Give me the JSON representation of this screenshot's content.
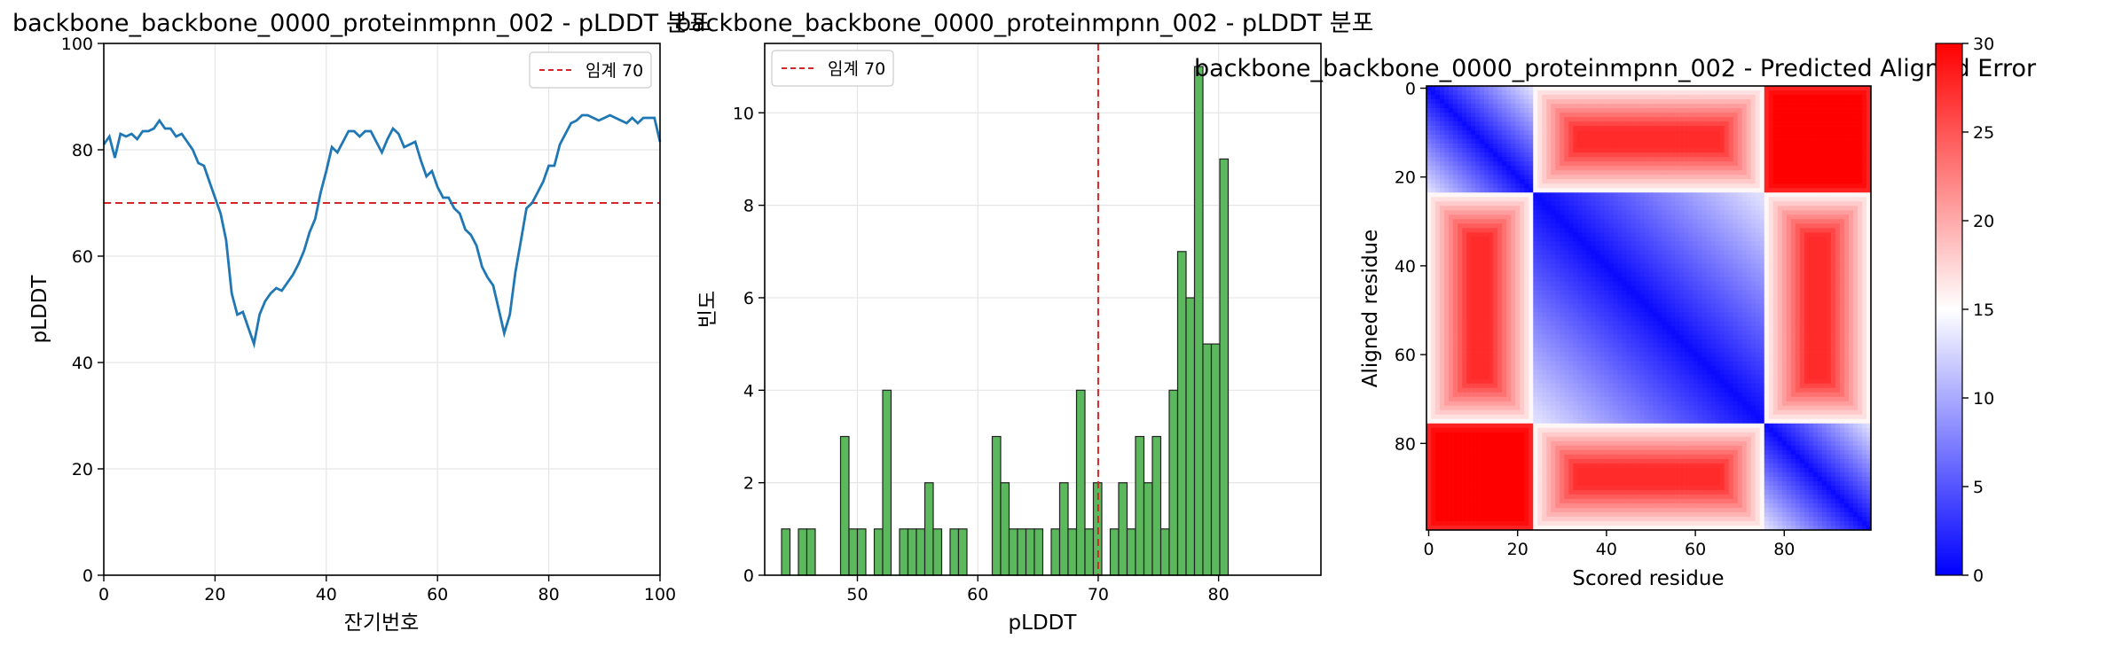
{
  "colors": {
    "line": "#1f77b4",
    "threshold": "#d62728",
    "bar_fill": "#5cb85c",
    "bar_edge": "#222222",
    "grid": "#e6e6e6"
  },
  "chart_data": [
    {
      "type": "line",
      "title": "backbone_backbone_0000_proteinmpnn_002 - pLDDT 분포",
      "xlabel": "잔기번호",
      "ylabel": "pLDDT",
      "xlim": [
        0,
        100
      ],
      "ylim": [
        0,
        100
      ],
      "xticks": [
        0,
        20,
        40,
        60,
        80,
        100
      ],
      "yticks": [
        0,
        20,
        40,
        60,
        80,
        100
      ],
      "grid": true,
      "legend": {
        "placement": "top-right",
        "entries": [
          "임계 70"
        ]
      },
      "threshold": 70,
      "series": [
        {
          "x": [
            0,
            1,
            2,
            3,
            4,
            5,
            6,
            7,
            8,
            9,
            10,
            11,
            12,
            13,
            14,
            15,
            16,
            17,
            18,
            19,
            20,
            21,
            22,
            23,
            24,
            25,
            26,
            27,
            28,
            29,
            30,
            31,
            32,
            33,
            34,
            35,
            36,
            37,
            38,
            39,
            40,
            41,
            42,
            43,
            44,
            45,
            46,
            47,
            48,
            49,
            50,
            51,
            52,
            53,
            54,
            55,
            56,
            57,
            58,
            59,
            60,
            61,
            62,
            63,
            64,
            65,
            66,
            67,
            68,
            69,
            70,
            71,
            72,
            73,
            74,
            75,
            76,
            77,
            78,
            79,
            80,
            81,
            82,
            83,
            84,
            85,
            86,
            87,
            88,
            89,
            90,
            91,
            92,
            93,
            94,
            95,
            96,
            97,
            98,
            99,
            100
          ],
          "values": [
            81,
            82.5,
            78.5,
            83,
            82.5,
            83,
            82,
            83.5,
            83.5,
            84,
            85.5,
            84,
            84,
            82.5,
            83,
            81.5,
            80,
            77.5,
            77,
            74,
            71,
            68,
            63,
            53,
            49,
            49.5,
            46.5,
            43.5,
            49,
            51.5,
            53,
            54,
            53.5,
            55,
            56.5,
            58.5,
            61,
            64.5,
            67,
            72,
            76,
            80.5,
            79.5,
            81.5,
            83.5,
            83.5,
            82.5,
            83.5,
            83.5,
            81.5,
            79.5,
            82,
            84,
            83,
            80.5,
            81,
            81.5,
            78,
            75,
            76,
            73,
            71,
            71,
            69,
            68,
            65,
            64,
            62,
            58,
            56,
            54.5,
            50,
            45.5,
            49,
            57,
            63,
            69,
            70,
            72,
            74,
            77,
            77,
            81,
            83,
            85,
            85.5,
            86.5,
            86.5,
            86,
            85.5,
            86,
            86.5,
            86,
            85.5,
            85,
            86,
            85,
            86,
            86,
            86,
            81.5
          ]
        }
      ]
    },
    {
      "type": "bar",
      "title": "backbone_backbone_0000_proteinmpnn_002 - pLDDT 분포",
      "xlabel": "pLDDT",
      "ylabel": "빈도",
      "xlim": [
        42.3,
        88.5
      ],
      "ylim": [
        0,
        11.5
      ],
      "xticks": [
        50,
        60,
        70,
        80
      ],
      "yticks": [
        0,
        2,
        4,
        6,
        8,
        10
      ],
      "grid": true,
      "legend": {
        "placement": "top-left",
        "entries": [
          "임계 70"
        ]
      },
      "threshold": 70,
      "bin_width": 0.7,
      "bins": [
        {
          "x": 43.7,
          "value": 1
        },
        {
          "x": 45.1,
          "value": 1
        },
        {
          "x": 45.8,
          "value": 1
        },
        {
          "x": 48.6,
          "value": 3
        },
        {
          "x": 49.3,
          "value": 1
        },
        {
          "x": 50.0,
          "value": 1
        },
        {
          "x": 51.4,
          "value": 1
        },
        {
          "x": 52.1,
          "value": 4
        },
        {
          "x": 53.5,
          "value": 1
        },
        {
          "x": 54.2,
          "value": 1
        },
        {
          "x": 54.9,
          "value": 1
        },
        {
          "x": 55.6,
          "value": 2
        },
        {
          "x": 56.3,
          "value": 1
        },
        {
          "x": 57.7,
          "value": 1
        },
        {
          "x": 58.4,
          "value": 1
        },
        {
          "x": 61.2,
          "value": 3
        },
        {
          "x": 61.9,
          "value": 2
        },
        {
          "x": 62.6,
          "value": 1
        },
        {
          "x": 63.3,
          "value": 1
        },
        {
          "x": 64.0,
          "value": 1
        },
        {
          "x": 64.7,
          "value": 1
        },
        {
          "x": 66.1,
          "value": 1
        },
        {
          "x": 66.8,
          "value": 2
        },
        {
          "x": 67.5,
          "value": 1
        },
        {
          "x": 68.2,
          "value": 4
        },
        {
          "x": 68.9,
          "value": 1
        },
        {
          "x": 69.6,
          "value": 2
        },
        {
          "x": 71.0,
          "value": 1
        },
        {
          "x": 71.7,
          "value": 2
        },
        {
          "x": 72.4,
          "value": 1
        },
        {
          "x": 73.1,
          "value": 3
        },
        {
          "x": 73.8,
          "value": 2
        },
        {
          "x": 74.5,
          "value": 3
        },
        {
          "x": 75.2,
          "value": 1
        },
        {
          "x": 75.9,
          "value": 4
        },
        {
          "x": 76.6,
          "value": 7
        },
        {
          "x": 77.3,
          "value": 6
        },
        {
          "x": 78.0,
          "value": 11
        },
        {
          "x": 78.7,
          "value": 5
        },
        {
          "x": 79.4,
          "value": 5
        },
        {
          "x": 80.1,
          "value": 9
        }
      ]
    },
    {
      "type": "heatmap",
      "title": "backbone_backbone_0000_proteinmpnn_002 - Predicted Aligned Error",
      "xlabel": "Scored residue",
      "ylabel": "Aligned residue",
      "size": 100,
      "xticks": [
        0,
        20,
        40,
        60,
        80
      ],
      "yticks": [
        0,
        20,
        40,
        60,
        80
      ],
      "colorbar": {
        "min": 0,
        "max": 30,
        "ticks": [
          0,
          5,
          10,
          15,
          20,
          25,
          30
        ],
        "colormap": "bwr"
      },
      "domains": [
        {
          "start": 0,
          "end": 23
        },
        {
          "start": 24,
          "end": 75
        },
        {
          "start": 76,
          "end": 99
        }
      ]
    }
  ]
}
